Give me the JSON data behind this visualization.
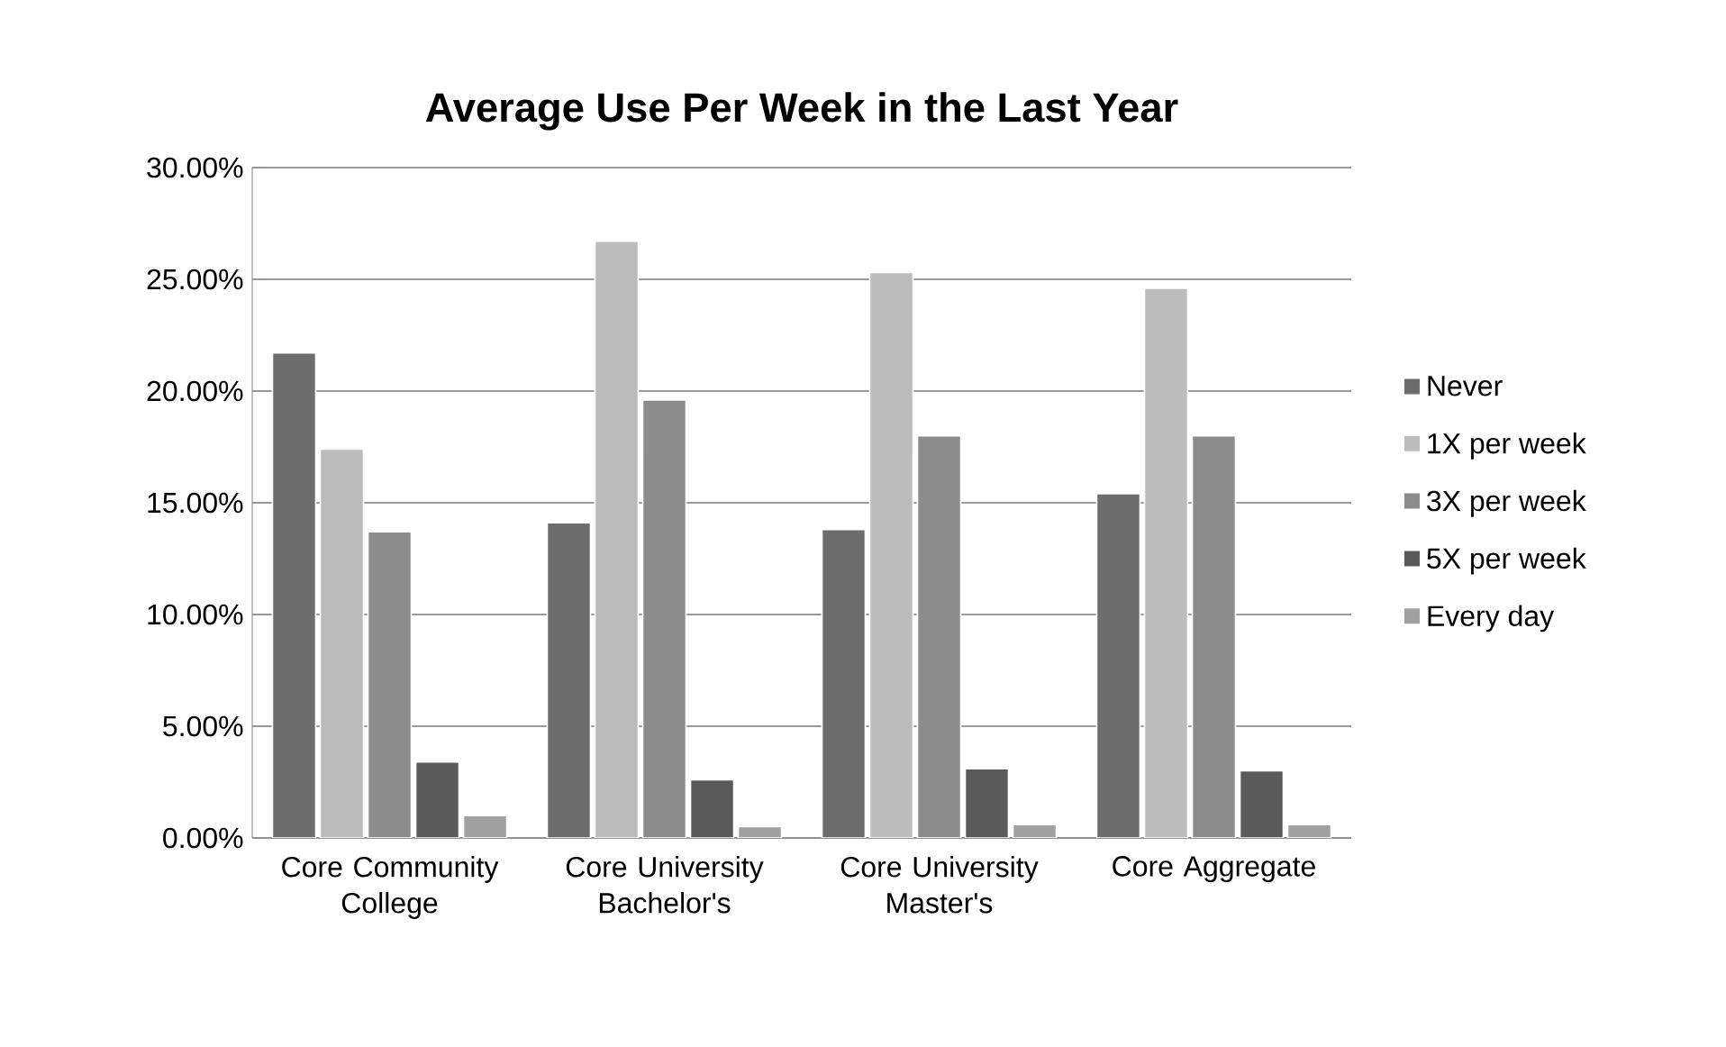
{
  "chart_data": {
    "type": "bar",
    "title": "Average Use Per Week in the Last Year",
    "categories": [
      "Core Community College",
      "Core University Bachelor's",
      "Core University Master's",
      "Core Aggregate"
    ],
    "series": [
      {
        "name": "Never",
        "color": "#6d6d6d",
        "values": [
          21.7,
          14.1,
          13.8,
          15.4
        ]
      },
      {
        "name": "1X per week",
        "color": "#bcbcbc",
        "values": [
          17.4,
          26.7,
          25.3,
          24.6
        ]
      },
      {
        "name": "3X per week",
        "color": "#8c8c8c",
        "values": [
          13.7,
          19.6,
          18.0,
          18.0
        ]
      },
      {
        "name": "5X per week",
        "color": "#5a5a5a",
        "values": [
          3.4,
          2.6,
          3.1,
          3.0
        ]
      },
      {
        "name": "Every day",
        "color": "#a0a0a0",
        "values": [
          1.0,
          0.5,
          0.6,
          0.6
        ]
      }
    ],
    "ylim": [
      0,
      30
    ],
    "yticks": [
      {
        "value": 0,
        "label": "0.00%"
      },
      {
        "value": 5,
        "label": "5.00%"
      },
      {
        "value": 10,
        "label": "10.00%"
      },
      {
        "value": 15,
        "label": "15.00%"
      },
      {
        "value": 20,
        "label": "20.00%"
      },
      {
        "value": 25,
        "label": "25.00%"
      },
      {
        "value": 30,
        "label": "30.00%"
      }
    ],
    "grid": "y",
    "legend": "right"
  }
}
